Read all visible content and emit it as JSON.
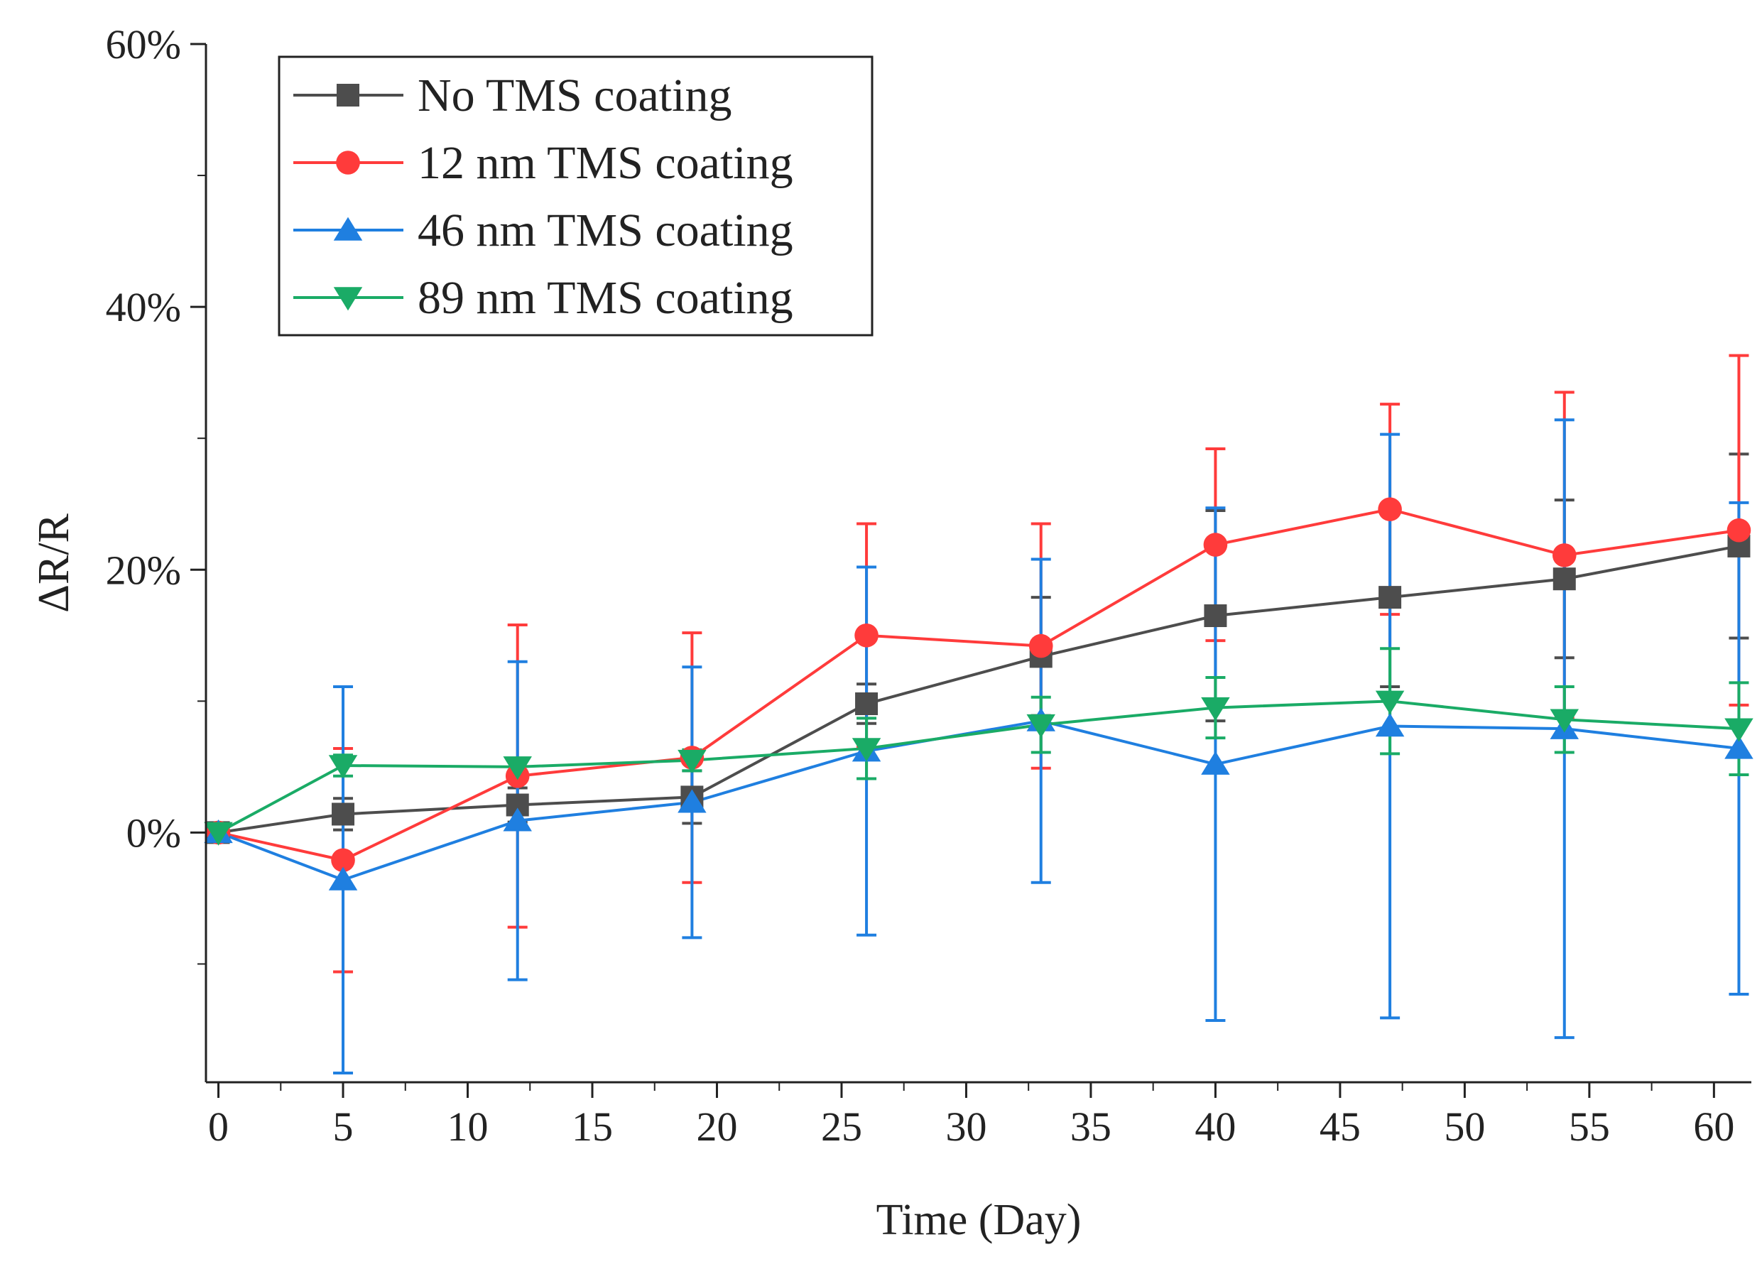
{
  "chart_data": {
    "type": "line",
    "title": "",
    "xlabel": "Time (Day)",
    "ylabel": "ΔR/R",
    "xlim": [
      -0.5,
      61.5
    ],
    "ylim": [
      -19,
      60
    ],
    "x_ticks": [
      0,
      5,
      10,
      15,
      20,
      25,
      30,
      35,
      40,
      45,
      50,
      55,
      60
    ],
    "x_tick_labels": [
      "0",
      "5",
      "10",
      "15",
      "20",
      "25",
      "30",
      "35",
      "40",
      "45",
      "50",
      "55",
      "60"
    ],
    "y_ticks": [
      0,
      20,
      40,
      60
    ],
    "y_tick_labels": [
      "0%",
      "20%",
      "40%",
      "60%"
    ],
    "x": [
      0,
      5,
      12,
      19,
      26,
      33,
      40,
      47,
      54,
      61
    ],
    "grid": false,
    "legend_position": "top-left",
    "series": [
      {
        "name": "No TMS coating",
        "color": "#4d4d4d",
        "marker": "square",
        "values": [
          0,
          1.4,
          2.1,
          2.7,
          9.8,
          13.4,
          16.5,
          17.9,
          19.3,
          21.8
        ],
        "errors": [
          0,
          1.2,
          1.3,
          2.0,
          1.5,
          4.5,
          8.0,
          6.8,
          6.0,
          7.0
        ]
      },
      {
        "name": "12 nm TMS coating",
        "color": "#ff3b3b",
        "marker": "circle",
        "values": [
          0,
          -2.1,
          4.3,
          5.7,
          15.0,
          14.2,
          21.9,
          24.6,
          21.1,
          23.0
        ],
        "errors": [
          0,
          8.5,
          11.5,
          9.5,
          8.5,
          9.3,
          7.3,
          8.0,
          12.4,
          13.3
        ]
      },
      {
        "name": "46 nm TMS coating",
        "color": "#1f7fe0",
        "marker": "triangle-up",
        "values": [
          0,
          -3.6,
          0.9,
          2.3,
          6.2,
          8.5,
          5.2,
          8.1,
          7.9,
          6.4
        ],
        "errors": [
          0,
          14.7,
          12.1,
          10.3,
          14.0,
          12.3,
          19.5,
          22.2,
          23.5,
          18.7
        ]
      },
      {
        "name": "89 nm TMS coating",
        "color": "#1aab66",
        "marker": "triangle-down",
        "values": [
          0,
          5.1,
          5.0,
          5.5,
          6.4,
          8.2,
          9.5,
          10.0,
          8.6,
          7.9
        ],
        "errors": [
          0,
          0.8,
          0.6,
          0.8,
          2.3,
          2.1,
          2.3,
          4.0,
          2.5,
          3.5
        ]
      }
    ]
  }
}
